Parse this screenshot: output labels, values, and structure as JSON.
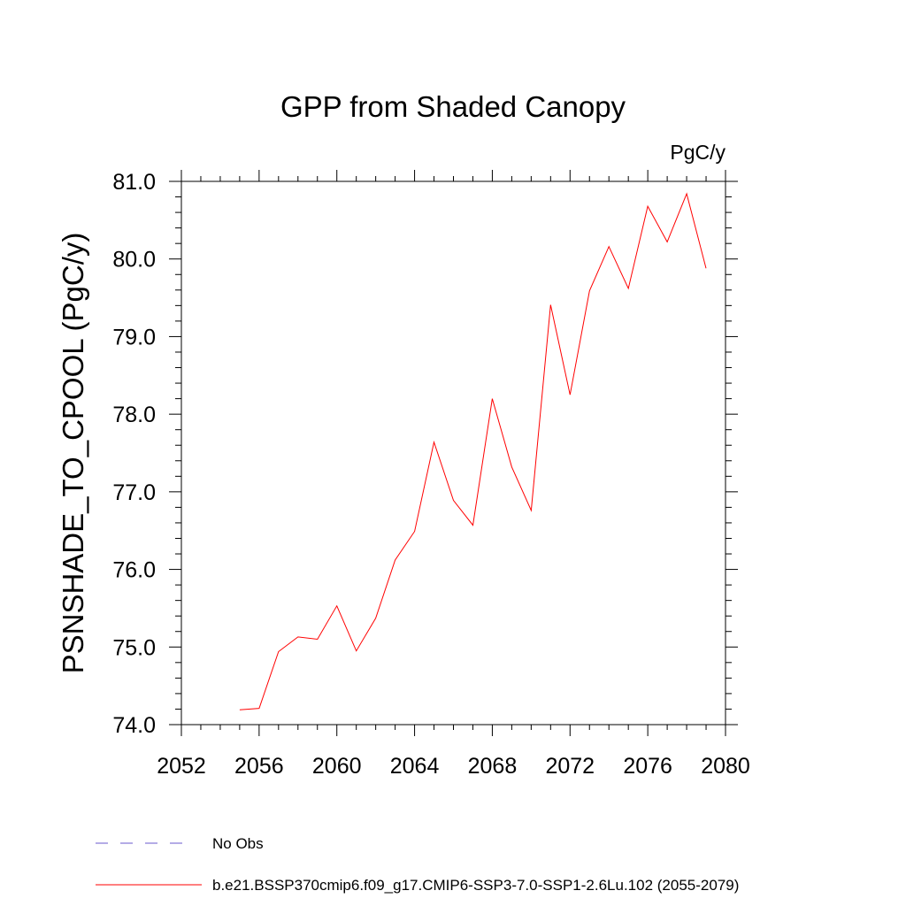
{
  "chart_data": {
    "type": "line",
    "title": "GPP from Shaded Canopy",
    "units_label": "PgC/y",
    "ylabel": "PSNSHADE_TO_CPOOL  (PgC/y)",
    "xlabel": "",
    "xlim": [
      2052,
      2080
    ],
    "ylim": [
      74.0,
      81.0
    ],
    "xticks": [
      2052,
      2056,
      2060,
      2064,
      2068,
      2072,
      2076,
      2080
    ],
    "xtick_labels": [
      "2052",
      "2056",
      "2060",
      "2064",
      "2068",
      "2072",
      "2076",
      "2080"
    ],
    "yticks": [
      74.0,
      75.0,
      76.0,
      77.0,
      78.0,
      79.0,
      80.0,
      81.0
    ],
    "ytick_labels": [
      "74.0",
      "75.0",
      "76.0",
      "77.0",
      "78.0",
      "79.0",
      "80.0",
      "81.0"
    ],
    "grid": false,
    "legend_position": "bottom-left",
    "legend": [
      {
        "name": "No Obs",
        "color": "#6a5acd",
        "style": "dashed",
        "has_data": false
      },
      {
        "name": "b.e21.BSSP370cmip6.f09_g17.CMIP6-SSP3-7.0-SSP1-2.6Lu.102 (2055-2079)",
        "color": "#ff0000",
        "style": "solid",
        "has_data": true
      }
    ],
    "series": [
      {
        "name": "b.e21.BSSP370cmip6.f09_g17.CMIP6-SSP3-7.0-SSP1-2.6Lu.102 (2055-2079)",
        "color": "#ff0000",
        "x": [
          2055,
          2056,
          2057,
          2058,
          2059,
          2060,
          2061,
          2062,
          2063,
          2064,
          2065,
          2066,
          2067,
          2068,
          2069,
          2070,
          2071,
          2072,
          2073,
          2074,
          2075,
          2076,
          2077,
          2078,
          2079
        ],
        "values": [
          74.19,
          74.21,
          74.94,
          75.13,
          75.1,
          75.53,
          74.95,
          75.37,
          76.12,
          76.49,
          77.64,
          76.89,
          76.57,
          78.2,
          77.32,
          76.76,
          79.41,
          78.25,
          79.59,
          80.16,
          79.62,
          80.68,
          80.22,
          80.84,
          79.88
        ]
      }
    ]
  }
}
